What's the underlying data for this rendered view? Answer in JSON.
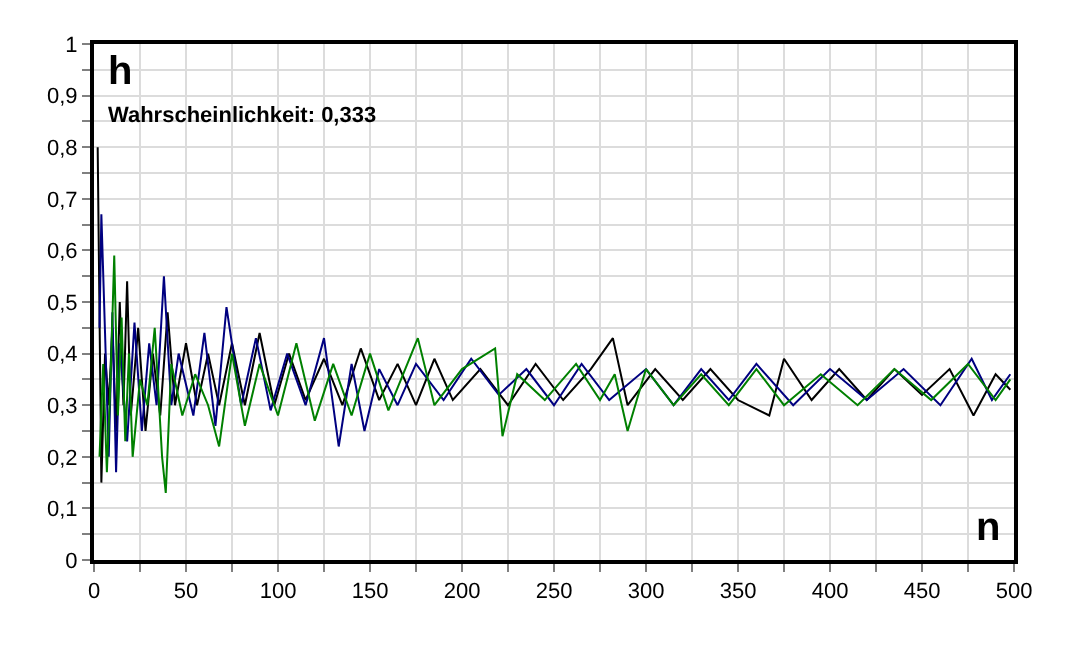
{
  "chart_data": {
    "type": "line",
    "xlabel": "n",
    "ylabel": "h",
    "annotations": [
      "Wahrscheinlichkeit: 0,333"
    ],
    "xlim": [
      0,
      500
    ],
    "ylim": [
      0,
      1
    ],
    "xticks": [
      0,
      {
        "value": 25,
        "label": null
      },
      50,
      {
        "value": 75,
        "label": null
      },
      100,
      {
        "value": 125,
        "label": null
      },
      150,
      {
        "value": 175,
        "label": null
      },
      200,
      {
        "value": 225,
        "label": null
      },
      250,
      {
        "value": 275,
        "label": null
      },
      300,
      {
        "value": 325,
        "label": null
      },
      350,
      {
        "value": 375,
        "label": null
      },
      400,
      {
        "value": 425,
        "label": null
      },
      450,
      {
        "value": 475,
        "label": null
      },
      500
    ],
    "yticks": [
      0,
      {
        "value": 0.05,
        "label": null
      },
      {
        "value": 0.1,
        "label": "0,1"
      },
      {
        "value": 0.15,
        "label": null
      },
      {
        "value": 0.2,
        "label": "0,2"
      },
      {
        "value": 0.25,
        "label": null
      },
      {
        "value": 0.3,
        "label": "0,3"
      },
      {
        "value": 0.35,
        "label": null
      },
      {
        "value": 0.4,
        "label": "0,4"
      },
      {
        "value": 0.45,
        "label": null
      },
      {
        "value": 0.5,
        "label": "0,5"
      },
      {
        "value": 0.55,
        "label": null
      },
      {
        "value": 0.6,
        "label": "0,6"
      },
      {
        "value": 0.65,
        "label": null
      },
      {
        "value": 0.7,
        "label": "0,7"
      },
      {
        "value": 0.75,
        "label": null
      },
      {
        "value": 0.8,
        "label": "0,8"
      },
      {
        "value": 0.85,
        "label": null
      },
      {
        "value": 0.9,
        "label": "0,9"
      },
      {
        "value": 0.95,
        "label": null
      },
      1
    ],
    "grid": true,
    "series": [
      {
        "color": "#000000",
        "x": [
          2,
          4,
          6,
          8,
          10,
          12,
          14,
          16,
          18,
          20,
          24,
          28,
          32,
          36,
          40,
          44,
          50,
          56,
          62,
          68,
          75,
          82,
          90,
          98,
          106,
          115,
          125,
          135,
          145,
          155,
          165,
          175,
          185,
          195,
          210,
          225,
          240,
          255,
          270,
          282,
          290,
          305,
          320,
          335,
          350,
          367,
          375,
          390,
          405,
          420,
          435,
          450,
          465,
          478,
          490,
          498
        ],
        "values": [
          0.8,
          0.15,
          0.4,
          0.3,
          0.45,
          0.25,
          0.5,
          0.3,
          0.54,
          0.28,
          0.45,
          0.25,
          0.4,
          0.28,
          0.48,
          0.3,
          0.42,
          0.3,
          0.4,
          0.3,
          0.42,
          0.3,
          0.44,
          0.3,
          0.4,
          0.31,
          0.39,
          0.3,
          0.41,
          0.31,
          0.38,
          0.3,
          0.39,
          0.31,
          0.37,
          0.3,
          0.38,
          0.31,
          0.37,
          0.43,
          0.3,
          0.37,
          0.31,
          0.37,
          0.31,
          0.28,
          0.39,
          0.31,
          0.37,
          0.31,
          0.37,
          0.32,
          0.37,
          0.28,
          0.36,
          0.33
        ]
      },
      {
        "color": "#000080",
        "x": [
          3,
          4,
          6,
          8,
          10,
          12,
          14,
          18,
          22,
          26,
          30,
          34,
          38,
          42,
          46,
          54,
          60,
          66,
          72,
          80,
          88,
          96,
          105,
          115,
          125,
          133,
          140,
          147,
          155,
          165,
          175,
          190,
          205,
          220,
          235,
          250,
          265,
          280,
          300,
          315,
          330,
          345,
          360,
          380,
          400,
          420,
          440,
          460,
          477,
          488,
          498
        ],
        "values": [
          0.45,
          0.67,
          0.44,
          0.2,
          0.48,
          0.17,
          0.42,
          0.23,
          0.46,
          0.25,
          0.42,
          0.3,
          0.55,
          0.3,
          0.4,
          0.28,
          0.44,
          0.26,
          0.49,
          0.3,
          0.43,
          0.29,
          0.4,
          0.3,
          0.43,
          0.22,
          0.38,
          0.25,
          0.37,
          0.3,
          0.38,
          0.31,
          0.39,
          0.32,
          0.37,
          0.3,
          0.38,
          0.31,
          0.37,
          0.3,
          0.37,
          0.31,
          0.38,
          0.3,
          0.37,
          0.31,
          0.37,
          0.3,
          0.39,
          0.31,
          0.36
        ]
      },
      {
        "color": "#008000",
        "x": [
          3,
          5,
          7,
          9,
          11,
          13,
          15,
          17,
          19,
          21,
          25,
          29,
          33,
          37,
          39,
          42,
          48,
          55,
          62,
          68,
          75,
          82,
          90,
          100,
          110,
          120,
          130,
          140,
          150,
          160,
          176,
          185,
          200,
          218,
          222,
          230,
          245,
          262,
          275,
          283,
          290,
          300,
          315,
          330,
          345,
          360,
          375,
          395,
          415,
          435,
          455,
          475,
          490,
          498
        ],
        "values": [
          0.2,
          0.38,
          0.17,
          0.35,
          0.59,
          0.28,
          0.47,
          0.23,
          0.4,
          0.2,
          0.35,
          0.3,
          0.45,
          0.2,
          0.13,
          0.38,
          0.28,
          0.36,
          0.3,
          0.22,
          0.4,
          0.26,
          0.38,
          0.28,
          0.42,
          0.27,
          0.38,
          0.28,
          0.4,
          0.29,
          0.43,
          0.3,
          0.37,
          0.41,
          0.24,
          0.36,
          0.31,
          0.38,
          0.31,
          0.36,
          0.25,
          0.37,
          0.3,
          0.36,
          0.3,
          0.37,
          0.3,
          0.36,
          0.3,
          0.37,
          0.31,
          0.38,
          0.31,
          0.35
        ]
      }
    ]
  }
}
